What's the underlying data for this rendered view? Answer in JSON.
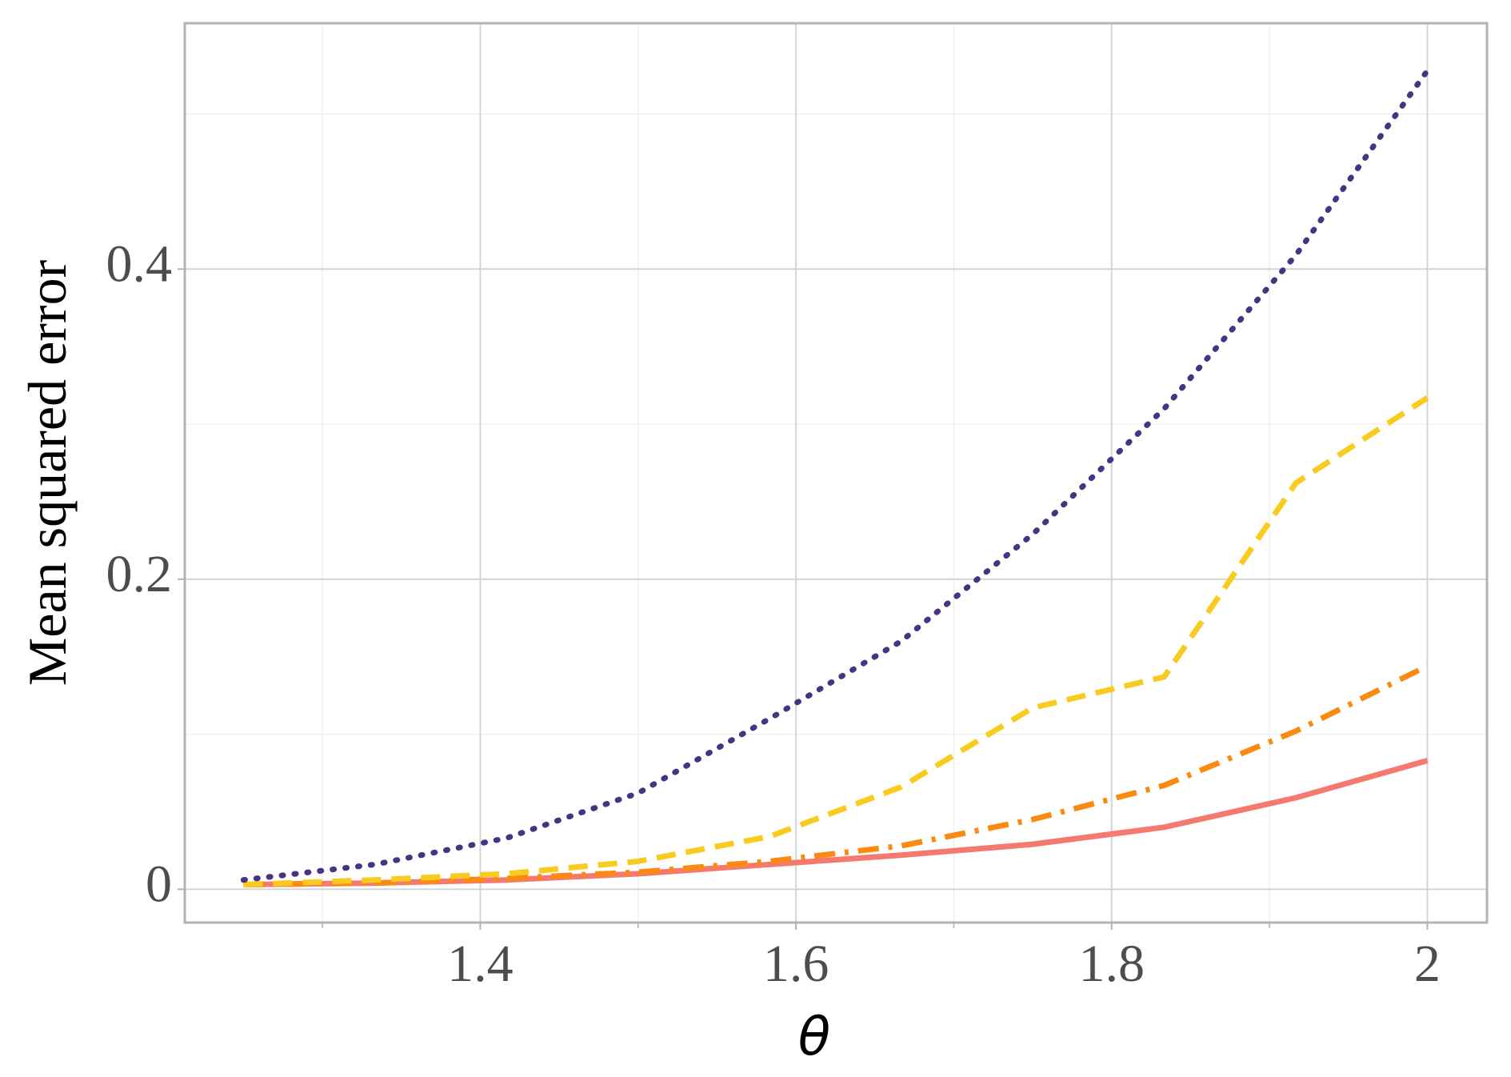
{
  "chart_data": {
    "type": "line",
    "x_label": "θ",
    "y_label": "Mean squared error",
    "x": [
      1.25,
      1.3333,
      1.4167,
      1.5,
      1.5833,
      1.6667,
      1.75,
      1.8333,
      1.9167,
      2.0
    ],
    "series": [
      {
        "color": "#483281",
        "style": "dotted",
        "values": [
          0.006,
          0.016,
          0.033,
          0.062,
          0.11,
          0.16,
          0.229,
          0.31,
          0.409,
          0.528
        ]
      },
      {
        "color": "#f9cb1f",
        "style": "dashed",
        "values": [
          0.003,
          0.006,
          0.01,
          0.018,
          0.034,
          0.066,
          0.117,
          0.137,
          0.262,
          0.317
        ]
      },
      {
        "color": "#fb8a13",
        "style": "dashdot",
        "values": [
          0.003,
          0.004,
          0.007,
          0.011,
          0.018,
          0.028,
          0.045,
          0.067,
          0.102,
          0.144
        ]
      },
      {
        "color": "#f47a70",
        "style": "solid",
        "values": [
          0.003,
          0.004,
          0.006,
          0.01,
          0.016,
          0.022,
          0.029,
          0.04,
          0.059,
          0.083
        ]
      }
    ],
    "xlim": [
      1.2128,
      2.0378
    ],
    "ylim": [
      -0.0215,
      0.5586
    ],
    "xticks": [
      1.4,
      1.6,
      1.8,
      2
    ],
    "yticks": [
      0,
      0.2,
      0.4
    ],
    "minor_xticks": [
      1.3,
      1.5,
      1.7,
      1.9
    ],
    "minor_yticks": [
      0.1,
      0.3,
      0.5
    ],
    "grid": true
  }
}
